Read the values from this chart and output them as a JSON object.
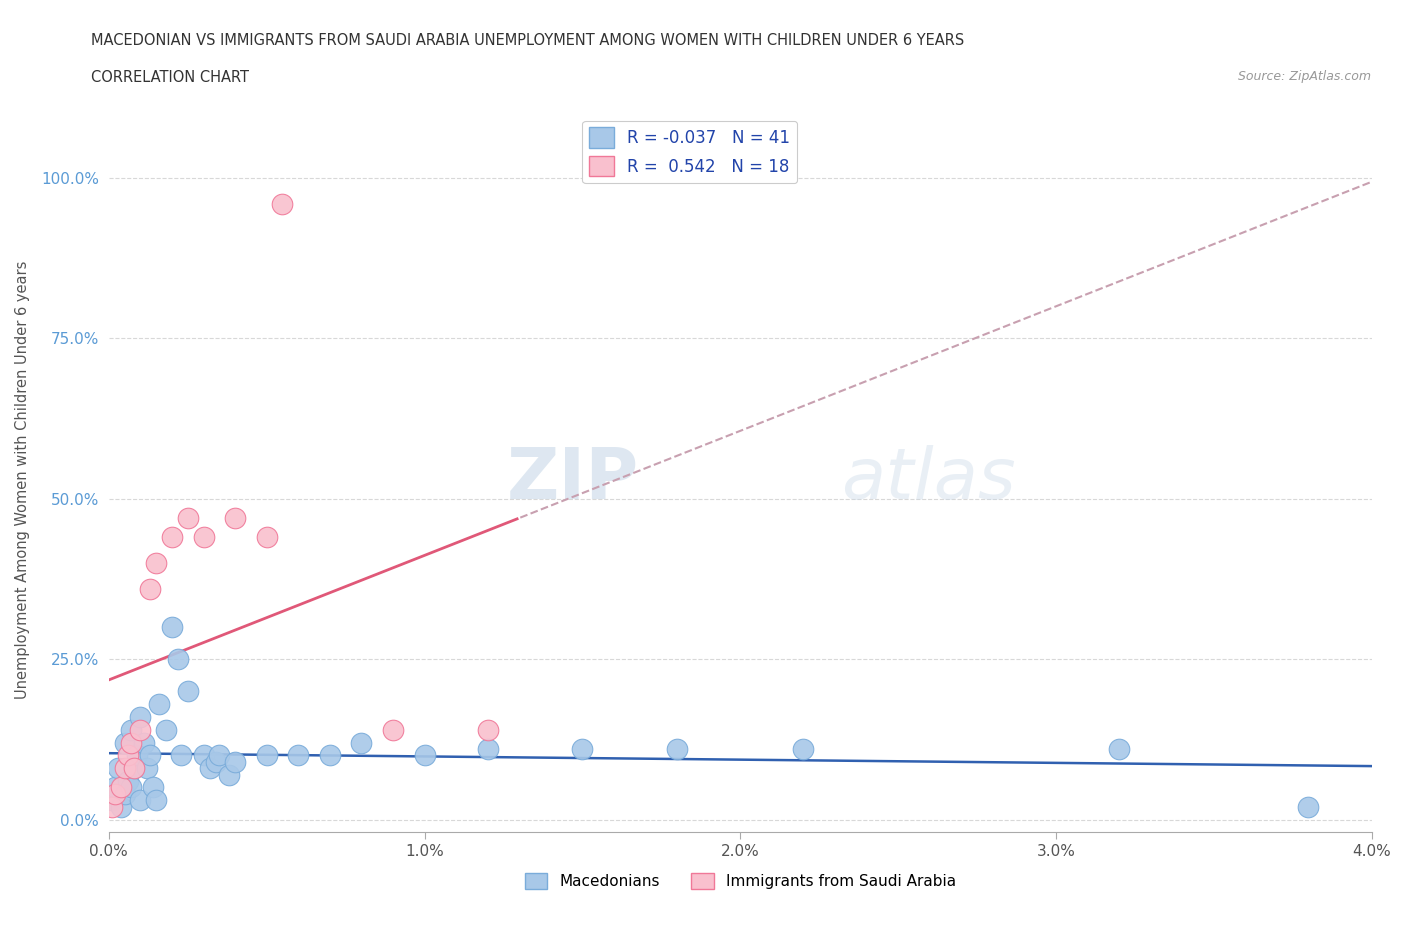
{
  "title_line1": "MACEDONIAN VS IMMIGRANTS FROM SAUDI ARABIA UNEMPLOYMENT AMONG WOMEN WITH CHILDREN UNDER 6 YEARS",
  "title_line2": "CORRELATION CHART",
  "source": "Source: ZipAtlas.com",
  "ylabel": "Unemployment Among Women with Children Under 6 years",
  "xlim": [
    0.0,
    0.04
  ],
  "ylim": [
    -0.02,
    1.08
  ],
  "xtick_labels": [
    "0.0%",
    "1.0%",
    "2.0%",
    "3.0%",
    "4.0%"
  ],
  "xtick_values": [
    0.0,
    0.01,
    0.02,
    0.03,
    0.04
  ],
  "ytick_labels": [
    "0.0%",
    "25.0%",
    "50.0%",
    "75.0%",
    "100.0%"
  ],
  "ytick_values": [
    0.0,
    0.25,
    0.5,
    0.75,
    1.0
  ],
  "macedonian_color": "#a8c8e8",
  "macedonian_edge": "#7aacda",
  "saudi_color": "#f9c0ce",
  "saudi_edge": "#f07898",
  "trend_mac_color": "#3060b0",
  "trend_saudi_solid": "#e05878",
  "trend_saudi_dash": "#c8a0b0",
  "R_macedonian": -0.037,
  "N_macedonian": 41,
  "R_saudi": 0.542,
  "N_saudi": 18,
  "mac_x": [
    0.0001,
    0.0002,
    0.0003,
    0.0004,
    0.0005,
    0.0005,
    0.0006,
    0.0007,
    0.0007,
    0.0008,
    0.0009,
    0.001,
    0.001,
    0.0011,
    0.0012,
    0.0013,
    0.0014,
    0.0015,
    0.0016,
    0.0018,
    0.002,
    0.0022,
    0.0023,
    0.0025,
    0.003,
    0.0032,
    0.0034,
    0.0035,
    0.0038,
    0.004,
    0.005,
    0.006,
    0.007,
    0.008,
    0.01,
    0.012,
    0.015,
    0.018,
    0.022,
    0.032,
    0.038
  ],
  "mac_y": [
    0.03,
    0.05,
    0.08,
    0.02,
    0.04,
    0.12,
    0.06,
    0.14,
    0.05,
    0.08,
    0.1,
    0.03,
    0.16,
    0.12,
    0.08,
    0.1,
    0.05,
    0.03,
    0.18,
    0.14,
    0.3,
    0.25,
    0.1,
    0.2,
    0.1,
    0.08,
    0.09,
    0.1,
    0.07,
    0.09,
    0.1,
    0.1,
    0.1,
    0.12,
    0.1,
    0.11,
    0.11,
    0.11,
    0.11,
    0.11,
    0.02
  ],
  "saudi_x": [
    0.0001,
    0.0002,
    0.0004,
    0.0005,
    0.0006,
    0.0007,
    0.0008,
    0.001,
    0.0013,
    0.0015,
    0.002,
    0.0025,
    0.003,
    0.004,
    0.005,
    0.0055,
    0.009,
    0.012
  ],
  "saudi_y": [
    0.02,
    0.04,
    0.05,
    0.08,
    0.1,
    0.12,
    0.08,
    0.14,
    0.36,
    0.4,
    0.44,
    0.47,
    0.44,
    0.47,
    0.44,
    0.96,
    0.14,
    0.14
  ],
  "watermark_zip": "ZIP",
  "watermark_atlas": "atlas",
  "background_color": "#ffffff",
  "grid_color": "#d8d8d8"
}
